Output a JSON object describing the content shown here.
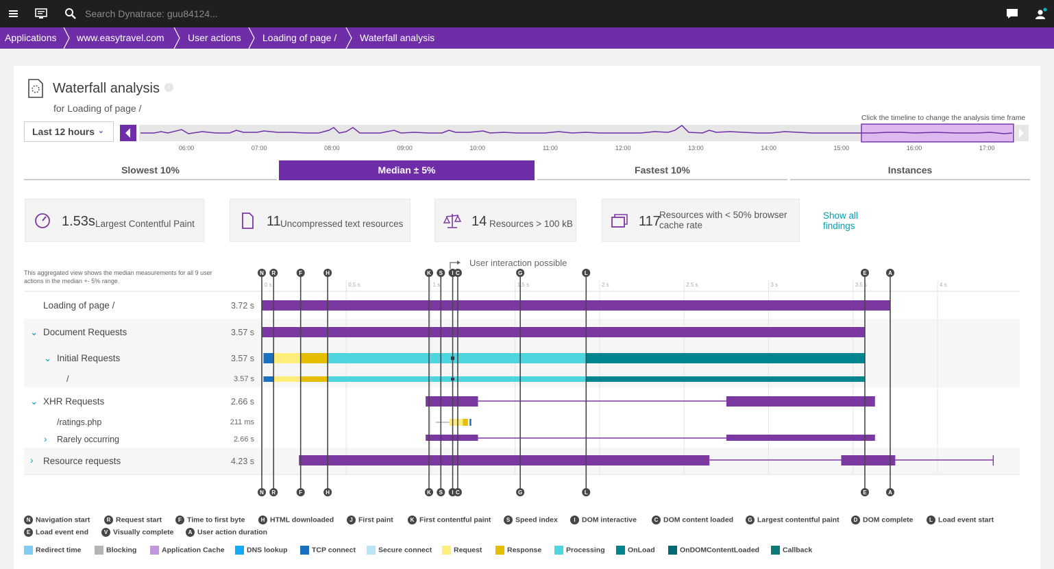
{
  "topbar": {
    "search_placeholder": "Search Dynatrace: guu84124..."
  },
  "breadcrumb": [
    "Applications",
    "www.easytravel.com",
    "User actions",
    "Loading of page /",
    "Waterfall analysis"
  ],
  "header": {
    "title": "Waterfall analysis",
    "subtitle": "for Loading of page /"
  },
  "timeframe": {
    "label": "Last 12 hours",
    "hint": "Click the timeline to change the analysis time frame",
    "ticks": [
      "06:00",
      "07:00",
      "08:00",
      "09:00",
      "10:00",
      "11:00",
      "12:00",
      "13:00",
      "14:00",
      "15:00",
      "16:00",
      "17:00"
    ]
  },
  "tabs": [
    "Slowest 10%",
    "Median ± 5%",
    "Fastest 10%",
    "Instances"
  ],
  "active_tab": "Median ± 5%",
  "kpis": [
    {
      "value": "1.53s",
      "label": "Largest Contentful Paint",
      "icon": "gauge-icon"
    },
    {
      "value": "11",
      "label": "Uncompressed text resources",
      "icon": "document-icon"
    },
    {
      "value": "14",
      "label": "Resources > 100 kB",
      "icon": "scale-icon"
    },
    {
      "value": "117",
      "label": "Resources with < 50% browser cache rate",
      "icon": "window-icon"
    }
  ],
  "show_all": "Show all findings",
  "aggregation_note": "This aggregated view shows the median measurements for all 9 user actions in the median +- 5% range.",
  "user_interaction": "User interaction possible",
  "axis_ticks": [
    "0 s",
    "0.5 s",
    "1 s",
    "1.5 s",
    "2 s",
    "2.5 s",
    "3 s",
    "3.5 s",
    "4 s"
  ],
  "rows": [
    {
      "label": "Loading of page /",
      "duration": "3.72 s"
    },
    {
      "label": "Document Requests",
      "duration": "3.57 s"
    },
    {
      "label": "Initial Requests",
      "duration": "3.57 s"
    },
    {
      "label": "/",
      "duration": "3.57 s"
    },
    {
      "label": "XHR Requests",
      "duration": "2.66 s"
    },
    {
      "label": "/ratings.php",
      "duration": "211 ms"
    },
    {
      "label": "Rarely occurring",
      "duration": "2.66 s"
    },
    {
      "label": "Resource requests",
      "duration": "4.23 s"
    }
  ],
  "markers": [
    {
      "letter": "N",
      "t": 0.0
    },
    {
      "letter": "R",
      "t": 0.07
    },
    {
      "letter": "F",
      "t": 0.23
    },
    {
      "letter": "H",
      "t": 0.39
    },
    {
      "letter": "K",
      "t": 0.99
    },
    {
      "letter": "S",
      "t": 1.06
    },
    {
      "letter": "I",
      "t": 1.13
    },
    {
      "letter": "C",
      "t": 1.16
    },
    {
      "letter": "G",
      "t": 1.53
    },
    {
      "letter": "L",
      "t": 1.92
    },
    {
      "letter": "E",
      "t": 3.57
    },
    {
      "letter": "A",
      "t": 3.72
    }
  ],
  "marker_legend": [
    {
      "letter": "N",
      "label": "Navigation start"
    },
    {
      "letter": "R",
      "label": "Request start"
    },
    {
      "letter": "F",
      "label": "Time to first byte"
    },
    {
      "letter": "H",
      "label": "HTML downloaded"
    },
    {
      "letter": "J",
      "label": "First paint"
    },
    {
      "letter": "K",
      "label": "First contentful paint"
    },
    {
      "letter": "S",
      "label": "Speed index"
    },
    {
      "letter": "I",
      "label": "DOM interactive"
    },
    {
      "letter": "C",
      "label": "DOM content loaded"
    },
    {
      "letter": "G",
      "label": "Largest contentful paint"
    },
    {
      "letter": "D",
      "label": "DOM complete"
    },
    {
      "letter": "L",
      "label": "Load event start"
    },
    {
      "letter": "E",
      "label": "Load event end"
    },
    {
      "letter": "V",
      "label": "Visually complete"
    },
    {
      "letter": "A",
      "label": "User action duration"
    }
  ],
  "color_legend": [
    {
      "label": "Redirect time",
      "color": "#7fcdf3"
    },
    {
      "label": "Blocking",
      "color": "#b4b4b4"
    },
    {
      "label": "Application Cache",
      "color": "#c396e0"
    },
    {
      "label": "DNS lookup",
      "color": "#14a8f5"
    },
    {
      "label": "TCP connect",
      "color": "#1a6fbf"
    },
    {
      "label": "Secure connect",
      "color": "#b9e3f7"
    },
    {
      "label": "Request",
      "color": "#ffee7c"
    },
    {
      "label": "Response",
      "color": "#e5be01"
    },
    {
      "label": "Processing",
      "color": "#4fd5e0"
    },
    {
      "label": "OnLoad",
      "color": "#00858f"
    },
    {
      "label": "OnDOMContentLoaded",
      "color": "#006a74"
    },
    {
      "label": "Callback",
      "color": "#0d7a7a"
    }
  ],
  "colors": {
    "accent": "#6f2da8",
    "bar": "#7c38a1",
    "link": "#00a1b2"
  }
}
